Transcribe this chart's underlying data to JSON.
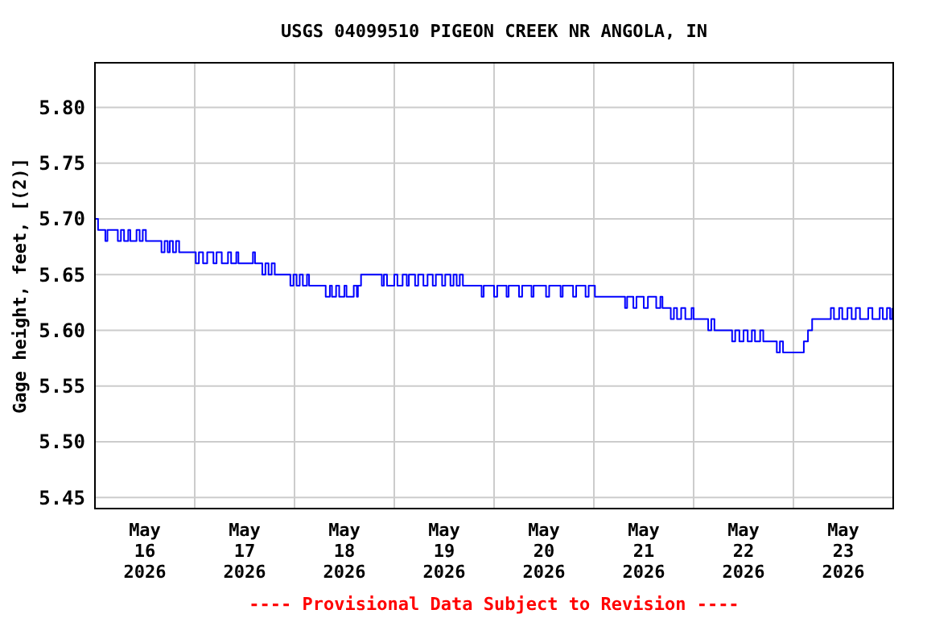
{
  "chart_data": {
    "type": "step",
    "title": "USGS 04099510 PIGEON CREEK NR ANGOLA, IN",
    "ylabel": "Gage height, feet, [(2)]",
    "annotations": [
      "---- Provisional Data Subject to Revision ----"
    ],
    "xlim": [
      "2026-05-16T00:00",
      "2026-05-24T00:00"
    ],
    "xticks": [
      {
        "value": "2026-05-16T00:00",
        "label": null
      },
      {
        "value": "2026-05-16T12:00",
        "label": "May\n16\n2026"
      },
      {
        "value": "2026-05-17T00:00",
        "label": null
      },
      {
        "value": "2026-05-17T12:00",
        "label": "May\n17\n2026"
      },
      {
        "value": "2026-05-18T00:00",
        "label": null
      },
      {
        "value": "2026-05-18T12:00",
        "label": "May\n18\n2026"
      },
      {
        "value": "2026-05-19T00:00",
        "label": null
      },
      {
        "value": "2026-05-19T12:00",
        "label": "May\n19\n2026"
      },
      {
        "value": "2026-05-20T00:00",
        "label": null
      },
      {
        "value": "2026-05-20T12:00",
        "label": "May\n20\n2026"
      },
      {
        "value": "2026-05-21T00:00",
        "label": null
      },
      {
        "value": "2026-05-21T12:00",
        "label": "May\n21\n2026"
      },
      {
        "value": "2026-05-22T00:00",
        "label": null
      },
      {
        "value": "2026-05-22T12:00",
        "label": "May\n22\n2026"
      },
      {
        "value": "2026-05-23T00:00",
        "label": null
      },
      {
        "value": "2026-05-23T12:00",
        "label": "May\n23\n2026"
      },
      {
        "value": "2026-05-24T00:00",
        "label": null
      }
    ],
    "ylim": [
      5.44,
      5.84
    ],
    "yticks": [
      {
        "value": 5.45,
        "label": "5.45"
      },
      {
        "value": 5.5,
        "label": "5.50"
      },
      {
        "value": 5.55,
        "label": "5.55"
      },
      {
        "value": 5.6,
        "label": "5.60"
      },
      {
        "value": 5.65,
        "label": "5.65"
      },
      {
        "value": 5.7,
        "label": "5.70"
      },
      {
        "value": 5.75,
        "label": "5.75"
      },
      {
        "value": 5.8,
        "label": "5.80"
      }
    ],
    "grid": true,
    "marker": "none",
    "line_style": "solid",
    "series": [
      {
        "color": "#0000ff",
        "x": [
          "2026-05-16T00:00",
          "2026-05-16T00:45",
          "2026-05-16T02:30",
          "2026-05-16T03:00",
          "2026-05-16T05:30",
          "2026-05-16T06:15",
          "2026-05-16T07:00",
          "2026-05-16T08:00",
          "2026-05-16T08:30",
          "2026-05-16T10:00",
          "2026-05-16T10:45",
          "2026-05-16T11:30",
          "2026-05-16T12:15",
          "2026-05-16T16:00",
          "2026-05-16T16:45",
          "2026-05-16T17:30",
          "2026-05-16T18:00",
          "2026-05-16T18:45",
          "2026-05-16T19:30",
          "2026-05-16T20:15",
          "2026-05-17T00:15",
          "2026-05-17T01:00",
          "2026-05-17T02:00",
          "2026-05-17T03:00",
          "2026-05-17T04:30",
          "2026-05-17T05:15",
          "2026-05-17T06:30",
          "2026-05-17T08:00",
          "2026-05-17T08:45",
          "2026-05-17T10:00",
          "2026-05-17T10:30",
          "2026-05-17T14:00",
          "2026-05-17T14:30",
          "2026-05-17T16:15",
          "2026-05-17T17:00",
          "2026-05-17T17:45",
          "2026-05-17T18:30",
          "2026-05-17T19:15",
          "2026-05-17T23:00",
          "2026-05-17T23:45",
          "2026-05-18T00:30",
          "2026-05-18T01:15",
          "2026-05-18T02:00",
          "2026-05-18T03:00",
          "2026-05-18T03:30",
          "2026-05-18T07:30",
          "2026-05-18T08:30",
          "2026-05-18T09:00",
          "2026-05-18T10:00",
          "2026-05-18T10:45",
          "2026-05-18T12:00",
          "2026-05-18T12:30",
          "2026-05-18T14:15",
          "2026-05-18T15:00",
          "2026-05-18T15:15",
          "2026-05-18T16:00",
          "2026-05-18T21:00",
          "2026-05-18T21:30",
          "2026-05-18T22:15",
          "2026-05-19T00:00",
          "2026-05-19T00:45",
          "2026-05-19T02:00",
          "2026-05-19T03:00",
          "2026-05-19T03:30",
          "2026-05-19T05:00",
          "2026-05-19T05:45",
          "2026-05-19T07:00",
          "2026-05-19T08:00",
          "2026-05-19T09:15",
          "2026-05-19T10:00",
          "2026-05-19T11:30",
          "2026-05-19T12:15",
          "2026-05-19T13:30",
          "2026-05-19T14:15",
          "2026-05-19T15:00",
          "2026-05-19T15:45",
          "2026-05-19T16:30",
          "2026-05-19T21:00",
          "2026-05-19T21:30",
          "2026-05-20T00:00",
          "2026-05-20T00:45",
          "2026-05-20T03:00",
          "2026-05-20T03:30",
          "2026-05-20T06:00",
          "2026-05-20T06:45",
          "2026-05-20T09:00",
          "2026-05-20T09:30",
          "2026-05-20T12:30",
          "2026-05-20T13:15",
          "2026-05-20T16:00",
          "2026-05-20T16:30",
          "2026-05-20T19:00",
          "2026-05-20T19:45",
          "2026-05-20T22:00",
          "2026-05-20T22:45",
          "2026-05-21T00:15",
          "2026-05-21T07:30",
          "2026-05-21T08:00",
          "2026-05-21T09:30",
          "2026-05-21T10:15",
          "2026-05-21T12:00",
          "2026-05-21T13:00",
          "2026-05-21T15:00",
          "2026-05-21T16:00",
          "2026-05-21T16:30",
          "2026-05-21T18:30",
          "2026-05-21T19:15",
          "2026-05-21T20:00",
          "2026-05-21T21:00",
          "2026-05-21T22:00",
          "2026-05-21T23:30",
          "2026-05-22T00:00",
          "2026-05-22T03:30",
          "2026-05-22T04:15",
          "2026-05-22T05:00",
          "2026-05-22T09:15",
          "2026-05-22T10:00",
          "2026-05-22T11:00",
          "2026-05-22T12:00",
          "2026-05-22T13:00",
          "2026-05-22T14:00",
          "2026-05-22T14:45",
          "2026-05-22T16:00",
          "2026-05-22T16:45",
          "2026-05-22T20:00",
          "2026-05-22T20:45",
          "2026-05-22T21:30",
          "2026-05-23T02:30",
          "2026-05-23T03:30",
          "2026-05-23T04:30",
          "2026-05-23T09:00",
          "2026-05-23T09:45",
          "2026-05-23T11:00",
          "2026-05-23T11:45",
          "2026-05-23T13:00",
          "2026-05-23T14:00",
          "2026-05-23T15:00",
          "2026-05-23T16:00",
          "2026-05-23T18:00",
          "2026-05-23T19:00",
          "2026-05-23T20:45",
          "2026-05-23T21:30",
          "2026-05-23T22:30",
          "2026-05-23T23:15",
          "2026-05-23T23:45"
        ],
        "values": [
          5.7,
          5.69,
          5.68,
          5.69,
          5.68,
          5.69,
          5.68,
          5.69,
          5.68,
          5.69,
          5.68,
          5.69,
          5.68,
          5.67,
          5.68,
          5.67,
          5.68,
          5.67,
          5.68,
          5.67,
          5.66,
          5.67,
          5.66,
          5.67,
          5.66,
          5.67,
          5.66,
          5.67,
          5.66,
          5.67,
          5.66,
          5.67,
          5.66,
          5.65,
          5.66,
          5.65,
          5.66,
          5.65,
          5.64,
          5.65,
          5.64,
          5.65,
          5.64,
          5.65,
          5.64,
          5.63,
          5.64,
          5.63,
          5.64,
          5.63,
          5.64,
          5.63,
          5.64,
          5.63,
          5.64,
          5.65,
          5.64,
          5.65,
          5.64,
          5.65,
          5.64,
          5.65,
          5.64,
          5.65,
          5.64,
          5.65,
          5.64,
          5.65,
          5.64,
          5.65,
          5.64,
          5.65,
          5.64,
          5.65,
          5.64,
          5.65,
          5.64,
          5.63,
          5.64,
          5.63,
          5.64,
          5.63,
          5.64,
          5.63,
          5.64,
          5.63,
          5.64,
          5.63,
          5.64,
          5.63,
          5.64,
          5.63,
          5.64,
          5.63,
          5.64,
          5.63,
          5.62,
          5.63,
          5.62,
          5.63,
          5.62,
          5.63,
          5.62,
          5.63,
          5.62,
          5.61,
          5.62,
          5.61,
          5.62,
          5.61,
          5.62,
          5.61,
          5.6,
          5.61,
          5.6,
          5.59,
          5.6,
          5.59,
          5.6,
          5.59,
          5.6,
          5.59,
          5.6,
          5.59,
          5.58,
          5.59,
          5.58,
          5.59,
          5.6,
          5.61,
          5.62,
          5.61,
          5.62,
          5.61,
          5.62,
          5.61,
          5.62,
          5.61,
          5.62,
          5.61,
          5.62,
          5.61,
          5.62,
          5.61,
          5.62
        ]
      }
    ]
  }
}
